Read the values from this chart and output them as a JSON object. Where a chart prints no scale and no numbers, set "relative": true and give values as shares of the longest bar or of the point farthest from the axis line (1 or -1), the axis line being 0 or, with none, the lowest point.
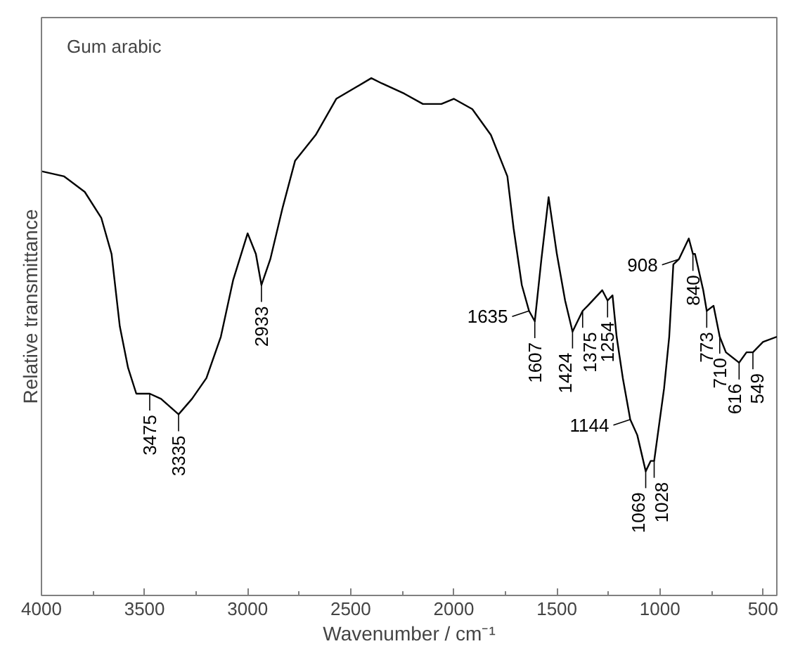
{
  "chart_data": {
    "type": "line",
    "title": "Gum arabic",
    "xlabel": "Wavenumber / cm⁻¹",
    "ylabel": "Relative transmittance",
    "relative": true,
    "grid": false,
    "xlim": [
      4000,
      433
    ],
    "xticks": [
      4000,
      {
        "value": 3750,
        "label": null
      },
      3500,
      {
        "value": 3250,
        "label": null
      },
      3000,
      {
        "value": 2750,
        "label": null
      },
      2500,
      {
        "value": 2250,
        "label": null
      },
      2000,
      {
        "value": 1750,
        "label": null
      },
      1500,
      {
        "value": 1250,
        "label": null
      },
      1000,
      {
        "value": 750,
        "label": null
      },
      500
    ],
    "series": [
      {
        "color": "#000000",
        "x": [
          4000,
          3890,
          3790,
          3710,
          3660,
          3620,
          3580,
          3540,
          3475,
          3420,
          3335,
          3270,
          3200,
          3130,
          3070,
          3000,
          2960,
          2933,
          2890,
          2830,
          2770,
          2670,
          2570,
          2400,
          2350,
          2240,
          2150,
          2060,
          2000,
          1910,
          1820,
          1740,
          1710,
          1670,
          1635,
          1607,
          1575,
          1540,
          1500,
          1460,
          1424,
          1375,
          1350,
          1280,
          1254,
          1230,
          1210,
          1180,
          1144,
          1110,
          1069,
          1045,
          1028,
          980,
          955,
          935,
          908,
          860,
          840,
          830,
          790,
          773,
          740,
          710,
          680,
          616,
          580,
          549,
          500,
          433
        ],
        "values": [
          0.82,
          0.81,
          0.78,
          0.73,
          0.66,
          0.52,
          0.44,
          0.39,
          0.39,
          0.38,
          0.35,
          0.38,
          0.42,
          0.5,
          0.61,
          0.7,
          0.66,
          0.6,
          0.65,
          0.75,
          0.84,
          0.89,
          0.96,
          1,
          0.99,
          0.97,
          0.95,
          0.95,
          0.96,
          0.94,
          0.89,
          0.81,
          0.71,
          0.6,
          0.55,
          0.53,
          0.65,
          0.77,
          0.66,
          0.57,
          0.51,
          0.55,
          0.56,
          0.59,
          0.57,
          0.58,
          0.5,
          0.42,
          0.34,
          0.31,
          0.24,
          0.26,
          0.26,
          0.4,
          0.5,
          0.64,
          0.65,
          0.69,
          0.66,
          0.66,
          0.59,
          0.55,
          0.56,
          0.5,
          0.47,
          0.45,
          0.47,
          0.47,
          0.49,
          0.5
        ]
      }
    ],
    "annotations": [
      {
        "text": "3475",
        "x": 3475,
        "y": 0.39
      },
      {
        "text": "3335",
        "x": 3335,
        "y": 0.35
      },
      {
        "text": "2933",
        "x": 2933,
        "y": 0.6
      },
      {
        "text": "1635",
        "x": 1635,
        "y": 0.55
      },
      {
        "text": "1607",
        "x": 1607,
        "y": 0.53
      },
      {
        "text": "1424",
        "x": 1424,
        "y": 0.51
      },
      {
        "text": "1375",
        "x": 1375,
        "y": 0.55
      },
      {
        "text": "1254",
        "x": 1254,
        "y": 0.57
      },
      {
        "text": "1144",
        "x": 1144,
        "y": 0.34
      },
      {
        "text": "1069",
        "x": 1069,
        "y": 0.24
      },
      {
        "text": "1028",
        "x": 1028,
        "y": 0.26
      },
      {
        "text": "908",
        "x": 908,
        "y": 0.65
      },
      {
        "text": "840",
        "x": 840,
        "y": 0.66
      },
      {
        "text": "773",
        "x": 773,
        "y": 0.55
      },
      {
        "text": "710",
        "x": 710,
        "y": 0.5
      },
      {
        "text": "616",
        "x": 616,
        "y": 0.45
      },
      {
        "text": "549",
        "x": 549,
        "y": 0.47
      }
    ]
  }
}
